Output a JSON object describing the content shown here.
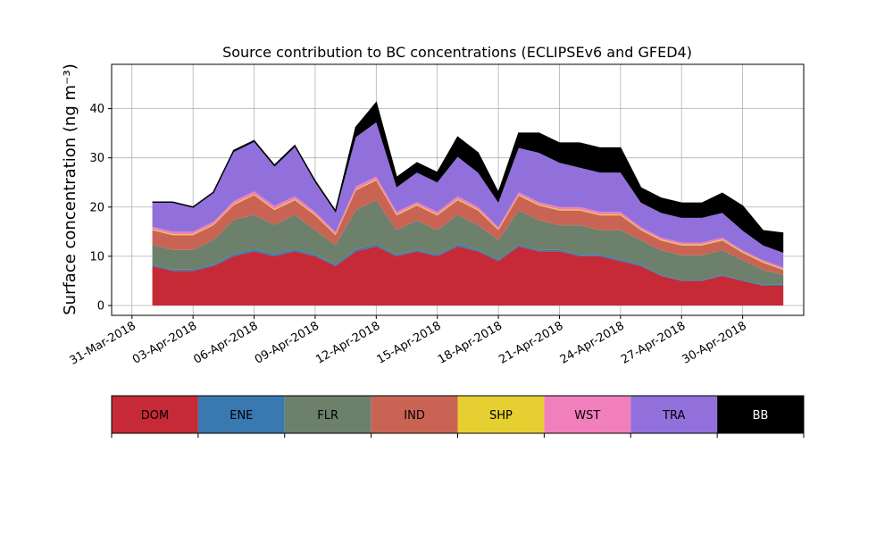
{
  "chart_data": {
    "type": "area",
    "title": "Source contribution to BC concentrations (ECLIPSEv6 and GFED4)",
    "ylabel": "Surface concentration (ng m⁻³)",
    "xlabel": "",
    "xlim": [
      "2018-03-30",
      "2018-05-03"
    ],
    "ylim": [
      -2,
      49
    ],
    "y_ticks": [
      0,
      10,
      20,
      30,
      40
    ],
    "x_ticks": [
      "2018-03-31",
      "2018-04-03",
      "2018-04-06",
      "2018-04-09",
      "2018-04-12",
      "2018-04-15",
      "2018-04-18",
      "2018-04-21",
      "2018-04-24",
      "2018-04-27",
      "2018-04-30"
    ],
    "x_tick_labels": [
      "31-Mar-2018",
      "03-Apr-2018",
      "06-Apr-2018",
      "09-Apr-2018",
      "12-Apr-2018",
      "15-Apr-2018",
      "18-Apr-2018",
      "21-Apr-2018",
      "24-Apr-2018",
      "27-Apr-2018",
      "30-Apr-2018"
    ],
    "grid": true,
    "stacked": true,
    "x": [
      "2018-04-01",
      "2018-04-02",
      "2018-04-03",
      "2018-04-04",
      "2018-04-05",
      "2018-04-06",
      "2018-04-07",
      "2018-04-08",
      "2018-04-09",
      "2018-04-10",
      "2018-04-11",
      "2018-04-12",
      "2018-04-13",
      "2018-04-14",
      "2018-04-15",
      "2018-04-16",
      "2018-04-17",
      "2018-04-18",
      "2018-04-19",
      "2018-04-20",
      "2018-04-21",
      "2018-04-22",
      "2018-04-23",
      "2018-04-24",
      "2018-04-25",
      "2018-04-26",
      "2018-04-27",
      "2018-04-28",
      "2018-04-29",
      "2018-04-30",
      "2018-05-01",
      "2018-05-02"
    ],
    "series": [
      {
        "name": "DOM",
        "color": "#c62a36",
        "values": [
          8,
          7,
          7,
          8,
          10,
          11,
          10,
          11,
          10,
          8,
          11,
          12,
          10,
          11,
          10,
          12,
          11,
          9,
          12,
          11,
          11,
          10,
          10,
          9,
          8,
          6,
          5,
          5,
          6,
          5,
          4,
          4
        ]
      },
      {
        "name": "ENE",
        "color": "#3a78b0",
        "values": [
          0.3,
          0.3,
          0.3,
          0.3,
          0.4,
          0.4,
          0.4,
          0.4,
          0.3,
          0.3,
          0.4,
          0.4,
          0.3,
          0.3,
          0.3,
          0.4,
          0.3,
          0.3,
          0.3,
          0.3,
          0.3,
          0.3,
          0.3,
          0.3,
          0.3,
          0.2,
          0.2,
          0.2,
          0.2,
          0.2,
          0.2,
          0.2
        ]
      },
      {
        "name": "FLR",
        "color": "#6c806c",
        "values": [
          4,
          4,
          4,
          5,
          7,
          7,
          6,
          7,
          5,
          4,
          8,
          9,
          5,
          6,
          5,
          6,
          5,
          4,
          7,
          6,
          5,
          6,
          5,
          6,
          5,
          5,
          5,
          5,
          5,
          4,
          3,
          2
        ]
      },
      {
        "name": "IND",
        "color": "#c96455",
        "values": [
          3,
          3,
          3,
          3,
          3,
          4,
          3,
          3,
          3,
          2,
          4,
          4,
          3,
          3,
          3,
          3,
          3,
          2,
          3,
          3,
          3,
          3,
          3,
          3,
          2,
          2,
          2,
          2,
          2,
          1.5,
          1.5,
          1
        ]
      },
      {
        "name": "SHP",
        "color": "#e6cf30",
        "values": [
          0.2,
          0.2,
          0.2,
          0.2,
          0.2,
          0.2,
          0.2,
          0.2,
          0.2,
          0.2,
          0.2,
          0.2,
          0.2,
          0.2,
          0.2,
          0.2,
          0.2,
          0.2,
          0.2,
          0.2,
          0.2,
          0.2,
          0.2,
          0.2,
          0.2,
          0.2,
          0.2,
          0.2,
          0.2,
          0.2,
          0.2,
          0.2
        ]
      },
      {
        "name": "WST",
        "color": "#f07fbc",
        "values": [
          0.5,
          0.5,
          0.5,
          0.5,
          0.6,
          0.6,
          0.6,
          0.6,
          0.5,
          0.4,
          0.6,
          0.6,
          0.5,
          0.5,
          0.5,
          0.6,
          0.5,
          0.4,
          0.5,
          0.5,
          0.5,
          0.5,
          0.5,
          0.5,
          0.4,
          0.4,
          0.4,
          0.4,
          0.4,
          0.3,
          0.3,
          0.3
        ]
      },
      {
        "name": "TRA",
        "color": "#9270dc",
        "values": [
          5,
          6,
          5,
          6,
          10,
          10,
          8,
          10,
          6,
          4,
          10,
          11,
          5,
          6,
          6,
          8,
          7,
          5,
          9,
          10,
          9,
          8,
          8,
          8,
          5,
          5,
          5,
          5,
          5,
          4,
          3,
          3
        ]
      },
      {
        "name": "BB",
        "color": "#000000",
        "values": [
          0,
          0,
          0,
          0,
          0.3,
          0.3,
          0.3,
          0.3,
          0.3,
          0.3,
          2,
          4,
          2,
          2,
          2,
          4,
          4,
          2,
          3,
          4,
          4,
          5,
          5,
          5,
          3,
          3,
          3,
          3,
          4,
          5,
          3,
          4
        ]
      }
    ],
    "legend": {
      "placement": "bottom-colorbar",
      "entries": [
        "DOM",
        "ENE",
        "FLR",
        "IND",
        "SHP",
        "WST",
        "TRA",
        "BB"
      ]
    }
  }
}
